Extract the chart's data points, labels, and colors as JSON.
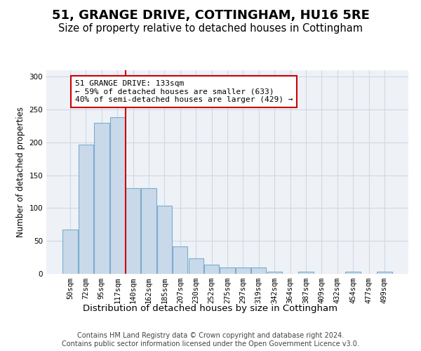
{
  "title": "51, GRANGE DRIVE, COTTINGHAM, HU16 5RE",
  "subtitle": "Size of property relative to detached houses in Cottingham",
  "xlabel": "Distribution of detached houses by size in Cottingham",
  "ylabel": "Number of detached properties",
  "categories": [
    "50sqm",
    "72sqm",
    "95sqm",
    "117sqm",
    "140sqm",
    "162sqm",
    "185sqm",
    "207sqm",
    "230sqm",
    "252sqm",
    "275sqm",
    "297sqm",
    "319sqm",
    "342sqm",
    "364sqm",
    "387sqm",
    "409sqm",
    "432sqm",
    "454sqm",
    "477sqm",
    "499sqm"
  ],
  "values": [
    67,
    197,
    230,
    238,
    130,
    130,
    104,
    42,
    23,
    14,
    10,
    10,
    10,
    3,
    0,
    3,
    0,
    0,
    3,
    0,
    3
  ],
  "bar_color": "#c9d9ea",
  "bar_edge_color": "#7aadce",
  "vline_xidx": 4,
  "vline_color": "#cc0000",
  "annotation_line1": "51 GRANGE DRIVE: 133sqm",
  "annotation_line2": "← 59% of detached houses are smaller (633)",
  "annotation_line3": "40% of semi-detached houses are larger (429) →",
  "annotation_box_color": "#ffffff",
  "annotation_box_edge": "#cc0000",
  "ylim": [
    0,
    310
  ],
  "yticks": [
    0,
    50,
    100,
    150,
    200,
    250,
    300
  ],
  "grid_color": "#d0d8e4",
  "bg_color": "#eef2f7",
  "footer_line1": "Contains HM Land Registry data © Crown copyright and database right 2024.",
  "footer_line2": "Contains public sector information licensed under the Open Government Licence v3.0.",
  "title_fontsize": 13,
  "subtitle_fontsize": 10.5,
  "xlabel_fontsize": 9.5,
  "ylabel_fontsize": 8.5,
  "tick_fontsize": 7.5,
  "annotation_fontsize": 8,
  "footer_fontsize": 7
}
